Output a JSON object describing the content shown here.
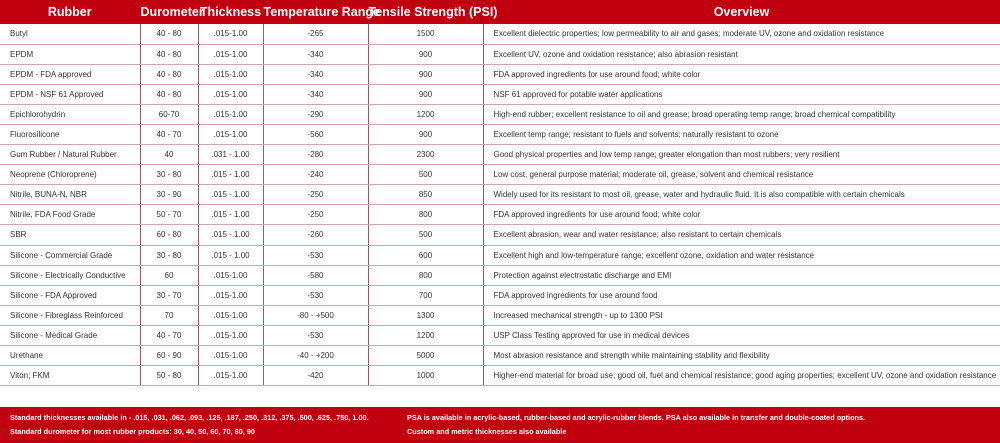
{
  "columns": [
    "Rubber",
    "Durometer",
    "Thickness",
    "Temperature Range",
    "Tensile Strength (PSI)",
    "Overview"
  ],
  "rows": [
    [
      "Butyl",
      "40 - 80",
      ".015-1.00",
      "-265",
      "1500",
      "Excellent dielectric properties; low permeability to air and gases; moderate UV, ozone and oxidation resistance"
    ],
    [
      "EPDM",
      "40 - 80",
      ".015-1.00",
      "-340",
      "900",
      "Excellent UV, ozone and oxidation resistance; also abrasion resistant"
    ],
    [
      "EPDM - FDA approved",
      "40 - 80",
      ".015-1.00",
      "-340",
      "900",
      "FDA approved ingredients for use around food; white color"
    ],
    [
      "EPDM - NSF 61 Approved",
      "40 - 80",
      ".015-1.00",
      "-340",
      "900",
      "NSF 61 approved for potable water applications"
    ],
    [
      "Epichlorohydrin",
      "60-70",
      ".015-1.00",
      "-290",
      "1200",
      "High-end rubber; excellent resistance to oil and grease; broad operating temp range; broad chemical compatibility"
    ],
    [
      "Fluorosilicone",
      "40 - 70",
      ".015-1.00",
      "-560",
      "900",
      "Excellent temp range; resistant to fuels and solvents; naturally resistant to ozone"
    ],
    [
      "Gum Rubber / Natural Rubber",
      "40",
      ".031 - 1.00",
      "-280",
      "2300",
      "Good physical properties and low temp range; greater elongation than most rubbers; very resilient"
    ],
    [
      "Neoprene (Chloroprene)",
      "30 - 80",
      ".015 - 1.00",
      "-240",
      "500",
      "Low cost, general purpose material; moderate oil, grease, solvent and chemical resistance"
    ],
    [
      "Nitrile, BUNA-N, NBR",
      "30 - 90",
      ".015 - 1.00",
      "-250",
      "850",
      "Widely used for its resistant to most oil, grease, water and hydraulic fluid.  It is also compatible with certain chemicals"
    ],
    [
      "Nitrile, FDA Food Grade",
      "50 - 70",
      ".015 - 1.00",
      "-250",
      "800",
      "FDA approved ingredients for use around food; white color"
    ],
    [
      "SBR",
      "60 - 80",
      ".015 - 1.00",
      "-260",
      "500",
      "Excellent abrasion, wear and water resistance; also resistant to certain chemicals"
    ],
    [
      "Silicone - Commercial Grade",
      "30 - 80",
      ".015 - 1.00",
      "-530",
      "600",
      "Excellent high and low-temperature range; excellent ozone, oxidation and water resistance"
    ],
    [
      "Silicone - Electrically Conductive",
      "60",
      ".015-1.00",
      "-580",
      "800",
      "Protection against electrostatic discharge and EMI"
    ],
    [
      "Silicone - FDA Approved",
      "30 - 70",
      ".015-1.00",
      "-530",
      "700",
      "FDA approved ingredients for use around food"
    ],
    [
      "Silicone - Fibreglass Reinforced",
      "70",
      ".015-1.00",
      "-80 - +500",
      "1300",
      "Increased mechanical strength - up to 1300 PSI"
    ],
    [
      "Silicone - Medical Grade",
      "40 - 70",
      ".015-1.00",
      "-530",
      "1200",
      "USP Class Testing approved for use in medical devices"
    ],
    [
      "Urethane",
      "60 - 90",
      ".015-1.00",
      "-40 - +200",
      "5000",
      "Most abrasion resistance and strength while maintaining stability and flexibility"
    ],
    [
      "Viton; FKM",
      "50 - 80",
      ".015-1.00",
      "-420",
      "1000",
      "Higher-end material for broad use; good oil, fuel and chemical resistance; good aging properties; excellent UV, ozone and oxidation resistance"
    ]
  ],
  "footer": {
    "thickness_note": "Standard thicknesses available in - .015, .031, .062, .093, .125, .187, .250, .312, .375, .500, .625, .750, 1.00.",
    "durometer_note": "Standard durometer for most rubber products: 30, 40, 50, 60, 70, 80, 90",
    "psa_note": "PSA is available in acrylic-based, rubber-based and acrylic-rubber blends. PSA also available in transfer and double-coated options.",
    "custom_note": "Custom and metric thicknesses also available"
  },
  "colors": {
    "header_bg": "#c0000e",
    "header_text": "#ffffff"
  }
}
